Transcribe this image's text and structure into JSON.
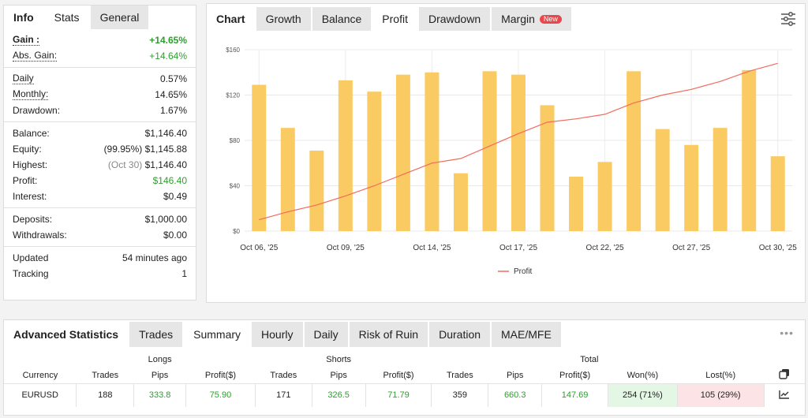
{
  "info_panel": {
    "tabs": [
      "Info",
      "Stats",
      "General"
    ],
    "groups": [
      [
        {
          "label": "Gain :",
          "value": "+14.65%",
          "u": true,
          "lb": true,
          "green": true,
          "bold": true
        },
        {
          "label": "Abs. Gain:",
          "value": "+14.64%",
          "u": true,
          "green": true
        }
      ],
      [
        {
          "label": "Daily",
          "value": "0.57%",
          "u": true
        },
        {
          "label": "Monthly:",
          "value": "14.65%",
          "u": true
        },
        {
          "label": "Drawdown:",
          "value": "1.67%"
        }
      ],
      [
        {
          "label": "Balance:",
          "value": "$1,146.40"
        },
        {
          "label": "Equity:",
          "value": "$1,145.88",
          "note": "(99.95%)"
        },
        {
          "label": "Highest:",
          "value": "$1,146.40",
          "note": "(Oct 30)",
          "note_grey": true
        },
        {
          "label": "Profit:",
          "value": "$146.40",
          "green": true
        },
        {
          "label": "Interest:",
          "value": "$0.49"
        }
      ],
      [
        {
          "label": "Deposits:",
          "value": "$1,000.00"
        },
        {
          "label": "Withdrawals:",
          "value": "$0.00"
        }
      ],
      [
        {
          "label": "Updated",
          "value": "54 minutes ago"
        },
        {
          "label": "Tracking",
          "value": "1"
        }
      ]
    ]
  },
  "chart_panel": {
    "tabs": [
      "Chart",
      "Growth",
      "Balance",
      "Profit",
      "Drawdown",
      "Margin"
    ],
    "active_tab": "Profit",
    "new_badge": "New",
    "settings_icon": "sliders-icon"
  },
  "chart_data": {
    "type": "bar",
    "x_tick_labels": [
      "Oct 06, '25",
      "Oct 09, '25",
      "Oct 14, '25",
      "Oct 17, '25",
      "Oct 22, '25",
      "Oct 27, '25",
      "Oct 30, '25"
    ],
    "y_tick_labels": [
      "$0",
      "$40",
      "$80",
      "$120",
      "$160"
    ],
    "ylim": [
      0,
      160
    ],
    "bar_color": "#fbcb63",
    "line_color": "#f26b5b",
    "legend": "Profit",
    "legend_placement": "bottom-center",
    "grid": true,
    "bars": [
      129,
      91,
      71,
      133,
      123,
      138,
      140,
      51,
      141,
      138,
      111,
      48,
      61,
      141,
      90,
      76,
      91,
      142,
      66
    ],
    "line": [
      10,
      17,
      23,
      31,
      40,
      50,
      60,
      64,
      75,
      86,
      96,
      99,
      103,
      113,
      120,
      125,
      132,
      141,
      148
    ]
  },
  "advanced": {
    "title": "Advanced Statistics",
    "tabs": [
      "Trades",
      "Summary",
      "Hourly",
      "Daily",
      "Risk of Ruin",
      "Duration",
      "MAE/MFE"
    ],
    "active_tab": "Summary",
    "more_icon": "ellipsis-icon",
    "groups": [
      "Longs",
      "Shorts",
      "Total"
    ],
    "headers": [
      "Currency",
      "Trades",
      "Pips",
      "Profit($)",
      "Trades",
      "Pips",
      "Profit($)",
      "Trades",
      "Pips",
      "Profit($)",
      "Won(%)",
      "Lost(%)"
    ],
    "copy_icon": "copy-icon",
    "row": [
      "EURUSD",
      "188",
      "333.8",
      "75.90",
      "171",
      "326.5",
      "71.79",
      "359",
      "660.3",
      "147.69",
      "254 (71%)",
      "105 (29%)"
    ],
    "row_icon": "chart-icon",
    "colors": {
      "positive": "#2ca02c",
      "won_bg": "#e4f6e4",
      "lost_bg": "#fce4e6"
    }
  }
}
